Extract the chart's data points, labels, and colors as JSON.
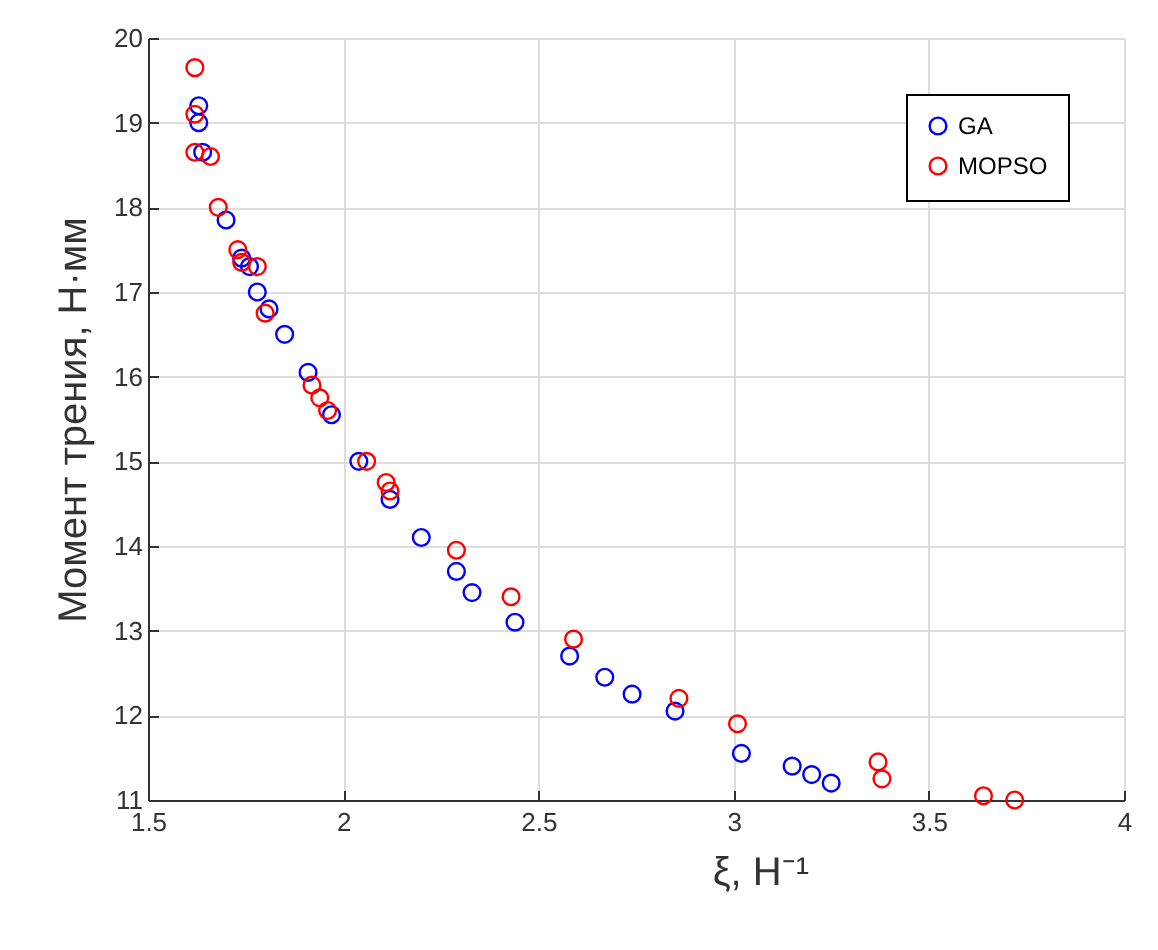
{
  "chart_data": {
    "type": "scatter",
    "xlabel": "ξ, Н⁻¹",
    "ylabel": "Момент трения, Н·мм",
    "xlim": [
      1.5,
      4
    ],
    "xticks": [
      1.5,
      2,
      2.5,
      3,
      3.5,
      4
    ],
    "ylim": [
      11,
      20
    ],
    "yticks": [
      11,
      12,
      13,
      14,
      15,
      16,
      17,
      18,
      19,
      20
    ],
    "grid": true,
    "legend": "top right",
    "marker": "circle",
    "series": [
      {
        "name": "GA",
        "color": "#0000ff",
        "x": [
          1.63,
          1.63,
          1.64,
          1.7,
          1.74,
          1.76,
          1.78,
          1.81,
          1.85,
          1.91,
          1.97,
          2.04,
          2.12,
          2.2,
          2.29,
          2.33,
          2.44,
          2.58,
          2.67,
          2.74,
          2.85,
          3.02,
          3.15,
          3.2,
          3.25
        ],
        "values": [
          19.2,
          19.0,
          18.65,
          17.85,
          17.4,
          17.3,
          17.0,
          16.8,
          16.5,
          16.05,
          15.55,
          15.0,
          14.55,
          14.1,
          13.7,
          13.45,
          13.1,
          12.7,
          12.45,
          12.25,
          12.05,
          11.55,
          11.4,
          11.3,
          11.2
        ]
      },
      {
        "name": "MOPSO",
        "color": "#ff0000",
        "x": [
          1.62,
          1.62,
          1.62,
          1.66,
          1.68,
          1.73,
          1.74,
          1.78,
          1.8,
          1.92,
          1.94,
          1.96,
          2.06,
          2.11,
          2.12,
          2.29,
          2.43,
          2.59,
          2.86,
          3.01,
          3.37,
          3.38,
          3.64,
          3.72
        ],
        "values": [
          19.65,
          19.1,
          18.65,
          18.6,
          18.0,
          17.5,
          17.35,
          17.3,
          16.75,
          15.9,
          15.75,
          15.6,
          15.0,
          14.75,
          14.65,
          13.95,
          13.4,
          12.9,
          12.2,
          11.9,
          11.45,
          11.25,
          11.05,
          11.0
        ]
      }
    ]
  }
}
